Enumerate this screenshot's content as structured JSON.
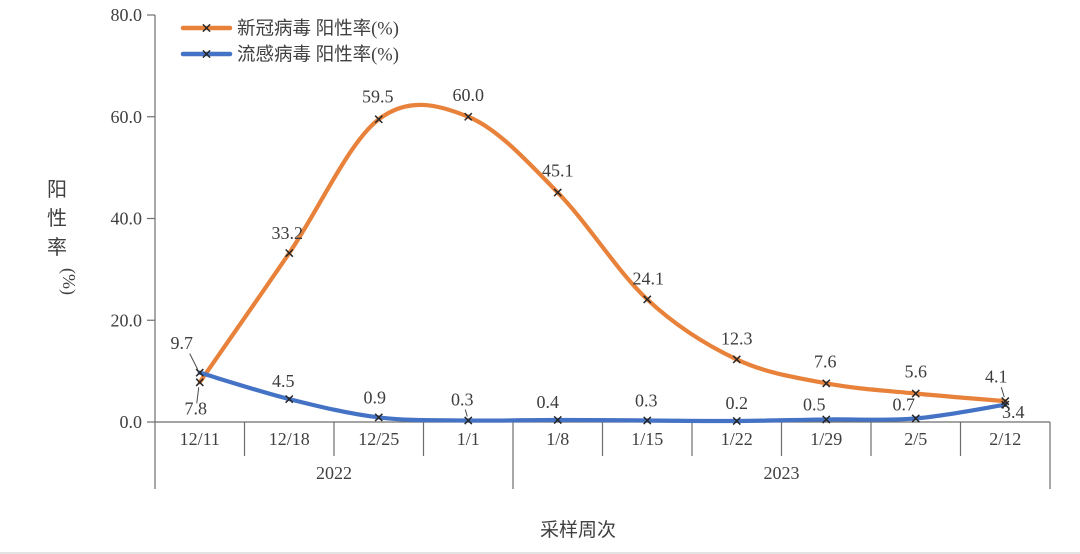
{
  "chart_data": {
    "type": "line",
    "title": "",
    "x_axis_title": "采样周次",
    "y_axis_title": "阳性率(%)",
    "y_axis_title_chars": [
      "阳",
      "性",
      "率"
    ],
    "y_axis_title_unit": "(%)",
    "categories": [
      "12/11",
      "12/18",
      "12/25",
      "1/1",
      "1/8",
      "1/15",
      "1/22",
      "1/29",
      "2/5",
      "2/12"
    ],
    "year_groups": [
      {
        "label": "2022",
        "span": 4
      },
      {
        "label": "2023",
        "span": 6
      }
    ],
    "series": [
      {
        "name": "新冠病毒 阳性率(%)",
        "color": "#E8823B",
        "values": [
          7.8,
          33.2,
          59.5,
          60.0,
          45.1,
          24.1,
          12.3,
          7.6,
          5.6,
          4.1
        ]
      },
      {
        "name": "流感病毒 阳性率(%)",
        "color": "#4472C4",
        "values": [
          9.7,
          4.5,
          0.9,
          0.3,
          0.4,
          0.3,
          0.2,
          0.5,
          0.7,
          3.4
        ]
      }
    ],
    "ylim": [
      0,
      80
    ],
    "y_ticks": [
      "0.0",
      "20.0",
      "40.0",
      "60.0",
      "80.0"
    ],
    "grid": false,
    "smooth": true,
    "marker": "x",
    "legend_position": "top-left",
    "colors": {
      "axis_line": "#6e6e6e",
      "text": "#404040",
      "data_label": "#3d3d3d",
      "marker": "#262626",
      "leader_line": "#4a4a4a"
    }
  }
}
